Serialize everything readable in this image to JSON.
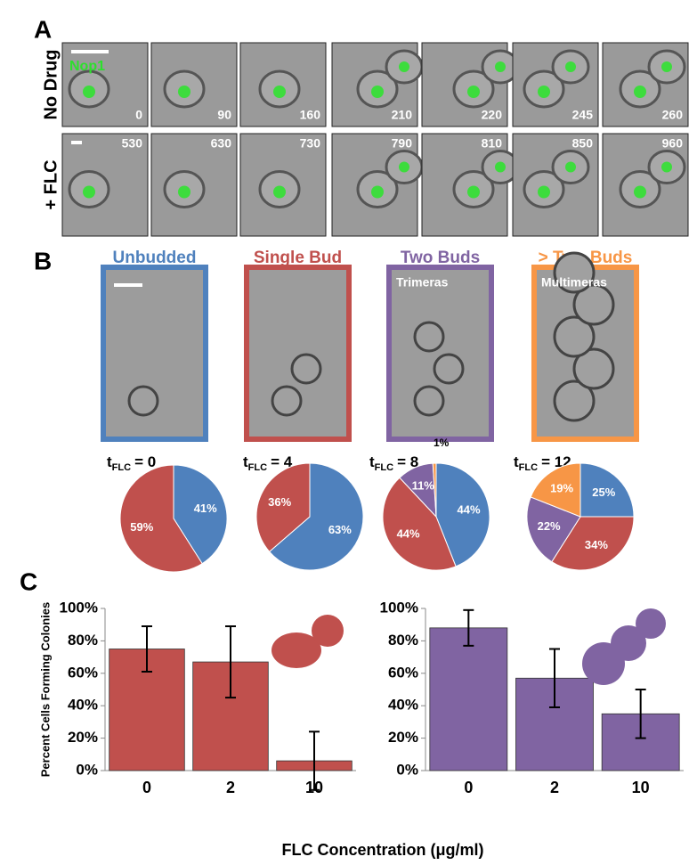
{
  "panel_a": {
    "label": "A",
    "marker": "Nop1",
    "rows": [
      {
        "name": "No Drug",
        "times": [
          0,
          90,
          160,
          210,
          220,
          245,
          260
        ]
      },
      {
        "name": "+ FLC",
        "times": [
          530,
          630,
          730,
          790,
          810,
          850,
          960
        ]
      }
    ]
  },
  "panel_b": {
    "label": "B",
    "classes": [
      {
        "name": "Unbudded",
        "color": "#4f81bd"
      },
      {
        "name": "Single Bud",
        "color": "#c0504d"
      },
      {
        "name": "Two Buds",
        "color": "#8064a2",
        "tag": "Trimeras"
      },
      {
        "name": "> Two Buds",
        "color": "#f79646",
        "tag": "Multimeras"
      }
    ]
  },
  "panel_c": {
    "label": "C",
    "xlabel": "FLC Concentration (μg/ml)"
  },
  "chart_data": [
    {
      "type": "pie",
      "title": "t",
      "title_sub": "FLC",
      "title_value": "= 0",
      "values": [
        41,
        59
      ],
      "value_labels": [
        "41%",
        "59%"
      ],
      "colors": [
        "#4f81bd",
        "#c0504d"
      ]
    },
    {
      "type": "pie",
      "title": "t",
      "title_sub": "FLC",
      "title_value": "= 4",
      "values": [
        63,
        36
      ],
      "value_labels": [
        "63%",
        "36%"
      ],
      "colors": [
        "#4f81bd",
        "#c0504d"
      ]
    },
    {
      "type": "pie",
      "title": "t",
      "title_sub": "FLC",
      "title_value": "= 8",
      "values": [
        44,
        44,
        11,
        1
      ],
      "value_labels": [
        "44%",
        "44%",
        "11%",
        "1%"
      ],
      "colors": [
        "#4f81bd",
        "#c0504d",
        "#8064a2",
        "#f79646"
      ]
    },
    {
      "type": "pie",
      "title": "t",
      "title_sub": "FLC",
      "title_value": "= 12",
      "values": [
        25,
        34,
        22,
        19
      ],
      "value_labels": [
        "25%",
        "34%",
        "22%",
        "19%"
      ],
      "colors": [
        "#4f81bd",
        "#c0504d",
        "#8064a2",
        "#f79646"
      ]
    },
    {
      "type": "bar",
      "ylabel": "Percent Cells Forming Colonies",
      "categories": [
        "0",
        "2",
        "10"
      ],
      "values": [
        75,
        67,
        6
      ],
      "errors": [
        14,
        22,
        18
      ],
      "color": "#c0504d",
      "ylim": [
        0,
        100
      ],
      "yticks": [
        {
          "value": 0,
          "label": "0%"
        },
        {
          "value": 20,
          "label": "20%"
        },
        {
          "value": 40,
          "label": "40%"
        },
        {
          "value": 60,
          "label": "60%"
        },
        {
          "value": 80,
          "label": "80%"
        },
        {
          "value": 100,
          "label": "100%"
        }
      ]
    },
    {
      "type": "bar",
      "categories": [
        "0",
        "2",
        "10"
      ],
      "values": [
        88,
        57,
        35
      ],
      "errors": [
        11,
        18,
        15
      ],
      "color": "#8064a2",
      "ylim": [
        0,
        100
      ],
      "yticks": [
        {
          "value": 0,
          "label": "0%"
        },
        {
          "value": 20,
          "label": "20%"
        },
        {
          "value": 40,
          "label": "40%"
        },
        {
          "value": 60,
          "label": "60%"
        },
        {
          "value": 80,
          "label": "80%"
        },
        {
          "value": 100,
          "label": "100%"
        }
      ]
    }
  ]
}
